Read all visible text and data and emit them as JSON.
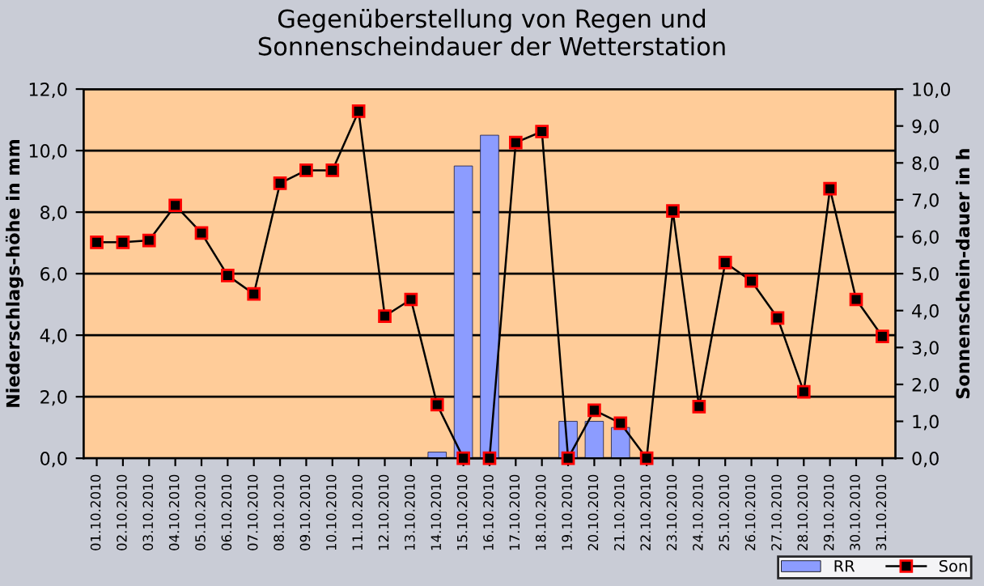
{
  "chart_data": {
    "type": "bar",
    "title": "Gegenüberstellung von Regen und\nSonnenscheindauer der Wetterstation",
    "ylabel": "Niederschlags-höhe in mm",
    "y2label": "Sonnenschein-dauer in h",
    "categories": [
      "01.10.2010",
      "02.10.2010",
      "03.10.2010",
      "04.10.2010",
      "05.10.2010",
      "06.10.2010",
      "07.10.2010",
      "08.10.2010",
      "09.10.2010",
      "10.10.2010",
      "11.10.2010",
      "12.10.2010",
      "13.10.2010",
      "14.10.2010",
      "15.10.2010",
      "16.10.2010",
      "17.10.2010",
      "18.10.2010",
      "19.10.2010",
      "20.10.2010",
      "21.10.2010",
      "22.10.2010",
      "23.10.2010",
      "24.10.2010",
      "25.10.2010",
      "26.10.2010",
      "27.10.2010",
      "28.10.2010",
      "29.10.2010",
      "30.10.2010",
      "31.10.2010"
    ],
    "series": [
      {
        "name": "RR",
        "color": "#8c9cff",
        "values": [
          null,
          null,
          null,
          null,
          null,
          null,
          null,
          null,
          null,
          null,
          null,
          null,
          null,
          0.2,
          9.5,
          10.5,
          null,
          null,
          1.2,
          1.2,
          1.0,
          null,
          null,
          null,
          null,
          null,
          null,
          null,
          null,
          null,
          null
        ]
      },
      {
        "name": "Son",
        "type": "line",
        "axis": "y2",
        "color": "#000000",
        "marker": "square",
        "values": [
          5.85,
          5.85,
          5.9,
          6.85,
          6.1,
          4.95,
          4.45,
          7.45,
          7.8,
          7.8,
          9.4,
          3.85,
          4.3,
          1.45,
          0,
          0,
          8.55,
          8.85,
          0,
          1.3,
          0.95,
          0,
          6.7,
          1.4,
          5.3,
          4.8,
          3.8,
          1.8,
          7.3,
          4.3,
          3.3
        ]
      }
    ],
    "ylim": [
      0,
      12
    ],
    "yticks": [
      {
        "value": 0,
        "label": "0,0"
      },
      {
        "value": 2,
        "label": "2,0"
      },
      {
        "value": 4,
        "label": "4,0"
      },
      {
        "value": 6,
        "label": "6,0"
      },
      {
        "value": 8,
        "label": "8,0"
      },
      {
        "value": 10,
        "label": "10,0"
      },
      {
        "value": 12,
        "label": "12,0"
      }
    ],
    "y2lim": [
      0,
      10
    ],
    "y2ticks": [
      {
        "value": 0,
        "label": "0,0"
      },
      {
        "value": 1,
        "label": "1,0"
      },
      {
        "value": 2,
        "label": "2,0"
      },
      {
        "value": 3,
        "label": "3,0"
      },
      {
        "value": 4,
        "label": "4,0"
      },
      {
        "value": 5,
        "label": "5,0"
      },
      {
        "value": 6,
        "label": "6,0"
      },
      {
        "value": 7,
        "label": "7,0"
      },
      {
        "value": 8,
        "label": "8,0"
      },
      {
        "value": 9,
        "label": "9,0"
      },
      {
        "value": 10,
        "label": "10,0"
      }
    ],
    "grid": "y",
    "legend": "bottom right"
  }
}
